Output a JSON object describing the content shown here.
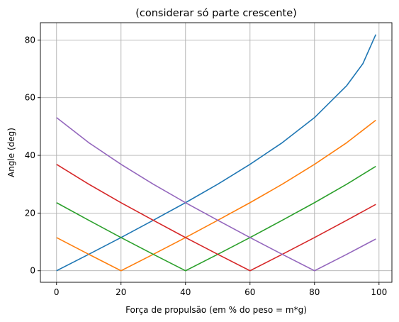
{
  "chart_data": {
    "type": "line",
    "title": "(considerar só parte crescente)",
    "xlabel": "Força de propulsão (em % do peso = m*g)",
    "ylabel": "Angle (deg)",
    "xlim": [
      -5,
      104
    ],
    "ylim": [
      -4,
      86
    ],
    "xticks": [
      0,
      20,
      40,
      60,
      80,
      100
    ],
    "yticks": [
      0,
      20,
      40,
      60,
      80
    ],
    "xtick_labels": [
      "0",
      "20",
      "40",
      "60",
      "80",
      "100"
    ],
    "ytick_labels": [
      "0",
      "20",
      "40",
      "60",
      "80"
    ],
    "grid": true,
    "series": [
      {
        "color": "#1f77b4",
        "x": [
          0,
          10,
          20,
          30,
          40,
          50,
          60,
          70,
          80,
          90,
          95,
          99
        ],
        "y": [
          0,
          5.7,
          11.5,
          17.5,
          23.6,
          30.0,
          36.9,
          44.4,
          53.1,
          64.2,
          71.8,
          81.9
        ]
      },
      {
        "color": "#ff7f0e",
        "x": [
          0,
          10,
          20,
          30,
          40,
          50,
          60,
          70,
          80,
          90,
          99
        ],
        "y": [
          11.5,
          5.7,
          0,
          5.7,
          11.5,
          17.5,
          23.6,
          30.0,
          36.9,
          44.4,
          52.2
        ]
      },
      {
        "color": "#2ca02c",
        "x": [
          0,
          10,
          20,
          30,
          40,
          50,
          60,
          70,
          80,
          90,
          99
        ],
        "y": [
          23.6,
          17.5,
          11.5,
          5.7,
          0,
          5.7,
          11.5,
          17.5,
          23.6,
          30.0,
          36.2
        ]
      },
      {
        "color": "#d62728",
        "x": [
          0,
          10,
          20,
          30,
          40,
          50,
          60,
          70,
          80,
          90,
          99
        ],
        "y": [
          36.9,
          30.0,
          23.6,
          17.5,
          11.5,
          5.7,
          0,
          5.7,
          11.5,
          17.5,
          23.0
        ]
      },
      {
        "color": "#9467bd",
        "x": [
          0,
          10,
          20,
          30,
          40,
          50,
          60,
          70,
          80,
          90,
          99
        ],
        "y": [
          53.1,
          44.4,
          36.9,
          30.0,
          23.6,
          17.5,
          11.5,
          5.7,
          0,
          5.7,
          11.0
        ]
      }
    ]
  }
}
